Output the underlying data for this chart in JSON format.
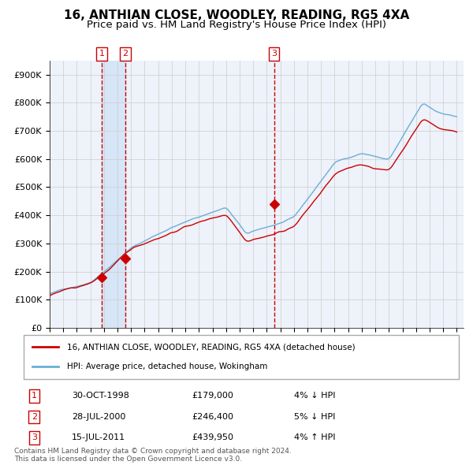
{
  "title": "16, ANTHIAN CLOSE, WOODLEY, READING, RG5 4XA",
  "subtitle": "Price paid vs. HM Land Registry's House Price Index (HPI)",
  "legend_line1": "16, ANTHIAN CLOSE, WOODLEY, READING, RG5 4XA (detached house)",
  "legend_line2": "HPI: Average price, detached house, Wokingham",
  "hpi_color": "#6baed6",
  "price_color": "#cc0000",
  "background_color": "#ffffff",
  "chart_bg_color": "#eef2fa",
  "grid_color": "#cccccc",
  "shade_color": "#d0e4f7",
  "ylim": [
    0,
    950000
  ],
  "yticks": [
    0,
    100000,
    200000,
    300000,
    400000,
    500000,
    600000,
    700000,
    800000,
    900000
  ],
  "ytick_labels": [
    "£0",
    "£100K",
    "£200K",
    "£300K",
    "£400K",
    "£500K",
    "£600K",
    "£700K",
    "£800K",
    "£900K"
  ],
  "sale_dates_year": [
    1998.831,
    2000.572,
    2011.536
  ],
  "sale_prices": [
    179000,
    246400,
    439950
  ],
  "sale_labels": [
    "1",
    "2",
    "3"
  ],
  "table_rows": [
    [
      "1",
      "30-OCT-1998",
      "£179,000",
      "4% ↓ HPI"
    ],
    [
      "2",
      "28-JUL-2000",
      "£246,400",
      "5% ↓ HPI"
    ],
    [
      "3",
      "15-JUL-2011",
      "£439,950",
      "4% ↑ HPI"
    ]
  ],
  "footer": "Contains HM Land Registry data © Crown copyright and database right 2024.\nThis data is licensed under the Open Government Licence v3.0.",
  "title_fontsize": 11,
  "subtitle_fontsize": 9.5,
  "tick_fontsize": 8,
  "xlim_start": 1995.0,
  "xlim_end": 2025.5
}
